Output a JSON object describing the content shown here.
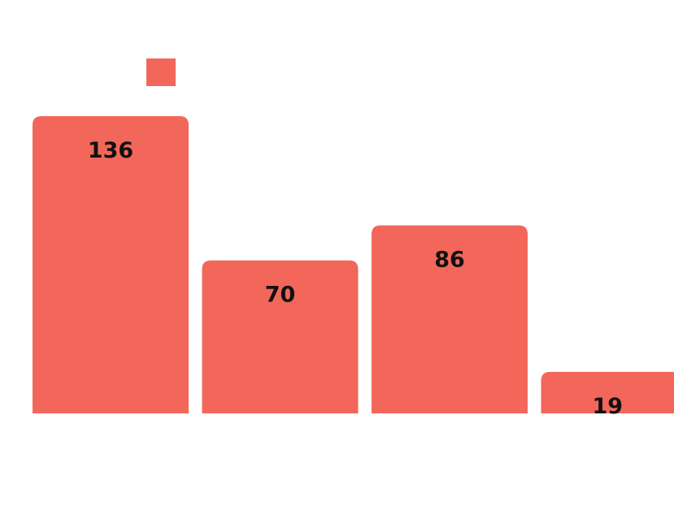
{
  "colors": {
    "bar": "#f2675a",
    "label": "#111111",
    "background": "#ffffff"
  },
  "chart_data": {
    "type": "bar",
    "categories": [
      "",
      "",
      "",
      ""
    ],
    "values": [
      136,
      70,
      86,
      19
    ],
    "data_labels": [
      "136",
      "70",
      "86",
      "19"
    ],
    "ylim": [
      0,
      136
    ],
    "grid": false,
    "legend_position": "top-left",
    "series": [
      {
        "values": [
          136,
          70,
          86,
          19
        ],
        "color": "#f2675a"
      }
    ]
  }
}
